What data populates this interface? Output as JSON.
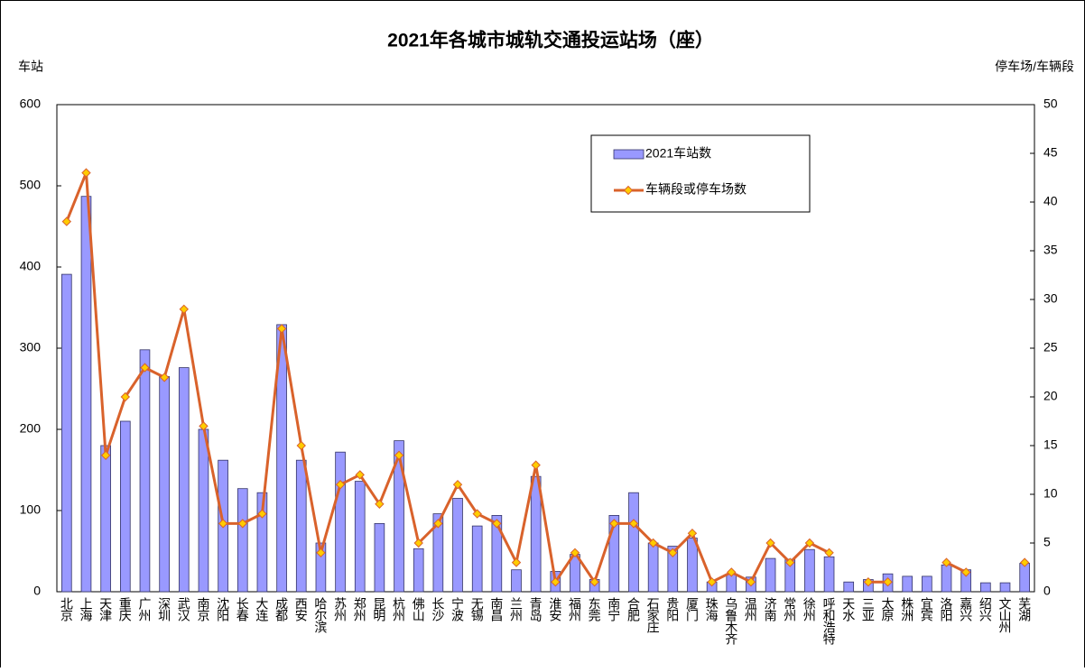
{
  "chart_data": {
    "type": "bar",
    "title": "2021年各城市城轨交通投运站场（座）",
    "y_label": "车站",
    "y2_label": "停车场/车辆段",
    "categories": [
      "北京",
      "上海",
      "天津",
      "重庆",
      "广州",
      "深圳",
      "武汉",
      "南京",
      "沈阳",
      "长春",
      "大连",
      "成都",
      "西安",
      "哈尔滨",
      "苏州",
      "郑州",
      "昆明",
      "杭州",
      "佛山",
      "长沙",
      "宁波",
      "无锡",
      "南昌",
      "兰州",
      "青岛",
      "淮安",
      "福州",
      "东莞",
      "南宁",
      "合肥",
      "石家庄",
      "贵阳",
      "厦门",
      "珠海",
      "乌鲁木齐",
      "温州",
      "济南",
      "常州",
      "徐州",
      "呼和浩特",
      "天水",
      "三亚",
      "太原",
      "株洲",
      "宜宾",
      "洛阳",
      "嘉兴",
      "绍兴",
      "文山州",
      "芜湖"
    ],
    "series": [
      {
        "name": "2021车站数",
        "type": "bar",
        "color": "#9999ff",
        "values": [
          391,
          487,
          180,
          210,
          298,
          265,
          276,
          200,
          162,
          127,
          122,
          329,
          162,
          60,
          172,
          136,
          84,
          186,
          53,
          96,
          115,
          81,
          94,
          27,
          142,
          25,
          46,
          15,
          94,
          122,
          60,
          56,
          66,
          12,
          22,
          18,
          41,
          40,
          52,
          43,
          12,
          15,
          22,
          19,
          19,
          33,
          27,
          11,
          11,
          35
        ]
      },
      {
        "name": "车辆段或停车场数",
        "type": "line",
        "axis": "y2",
        "color": "#d9622b",
        "marker_color": "#ffcc00",
        "values": [
          38,
          43,
          14,
          20,
          23,
          22,
          29,
          17,
          7,
          7,
          8,
          27,
          15,
          4,
          11,
          12,
          9,
          14,
          5,
          7,
          11,
          8,
          7,
          3,
          13,
          1,
          4,
          1,
          7,
          7,
          5,
          4,
          6,
          1,
          2,
          1,
          5,
          3,
          5,
          4,
          null,
          1,
          1,
          null,
          null,
          3,
          2,
          null,
          null,
          3
        ]
      }
    ],
    "ylim": [
      0,
      600
    ],
    "yticks": [
      0,
      100,
      200,
      300,
      400,
      500,
      600
    ],
    "y2lim": [
      0,
      50
    ],
    "y2ticks": [
      0,
      5,
      10,
      15,
      20,
      25,
      30,
      35,
      40,
      45,
      50
    ],
    "grid": false,
    "legend": "upper right"
  }
}
